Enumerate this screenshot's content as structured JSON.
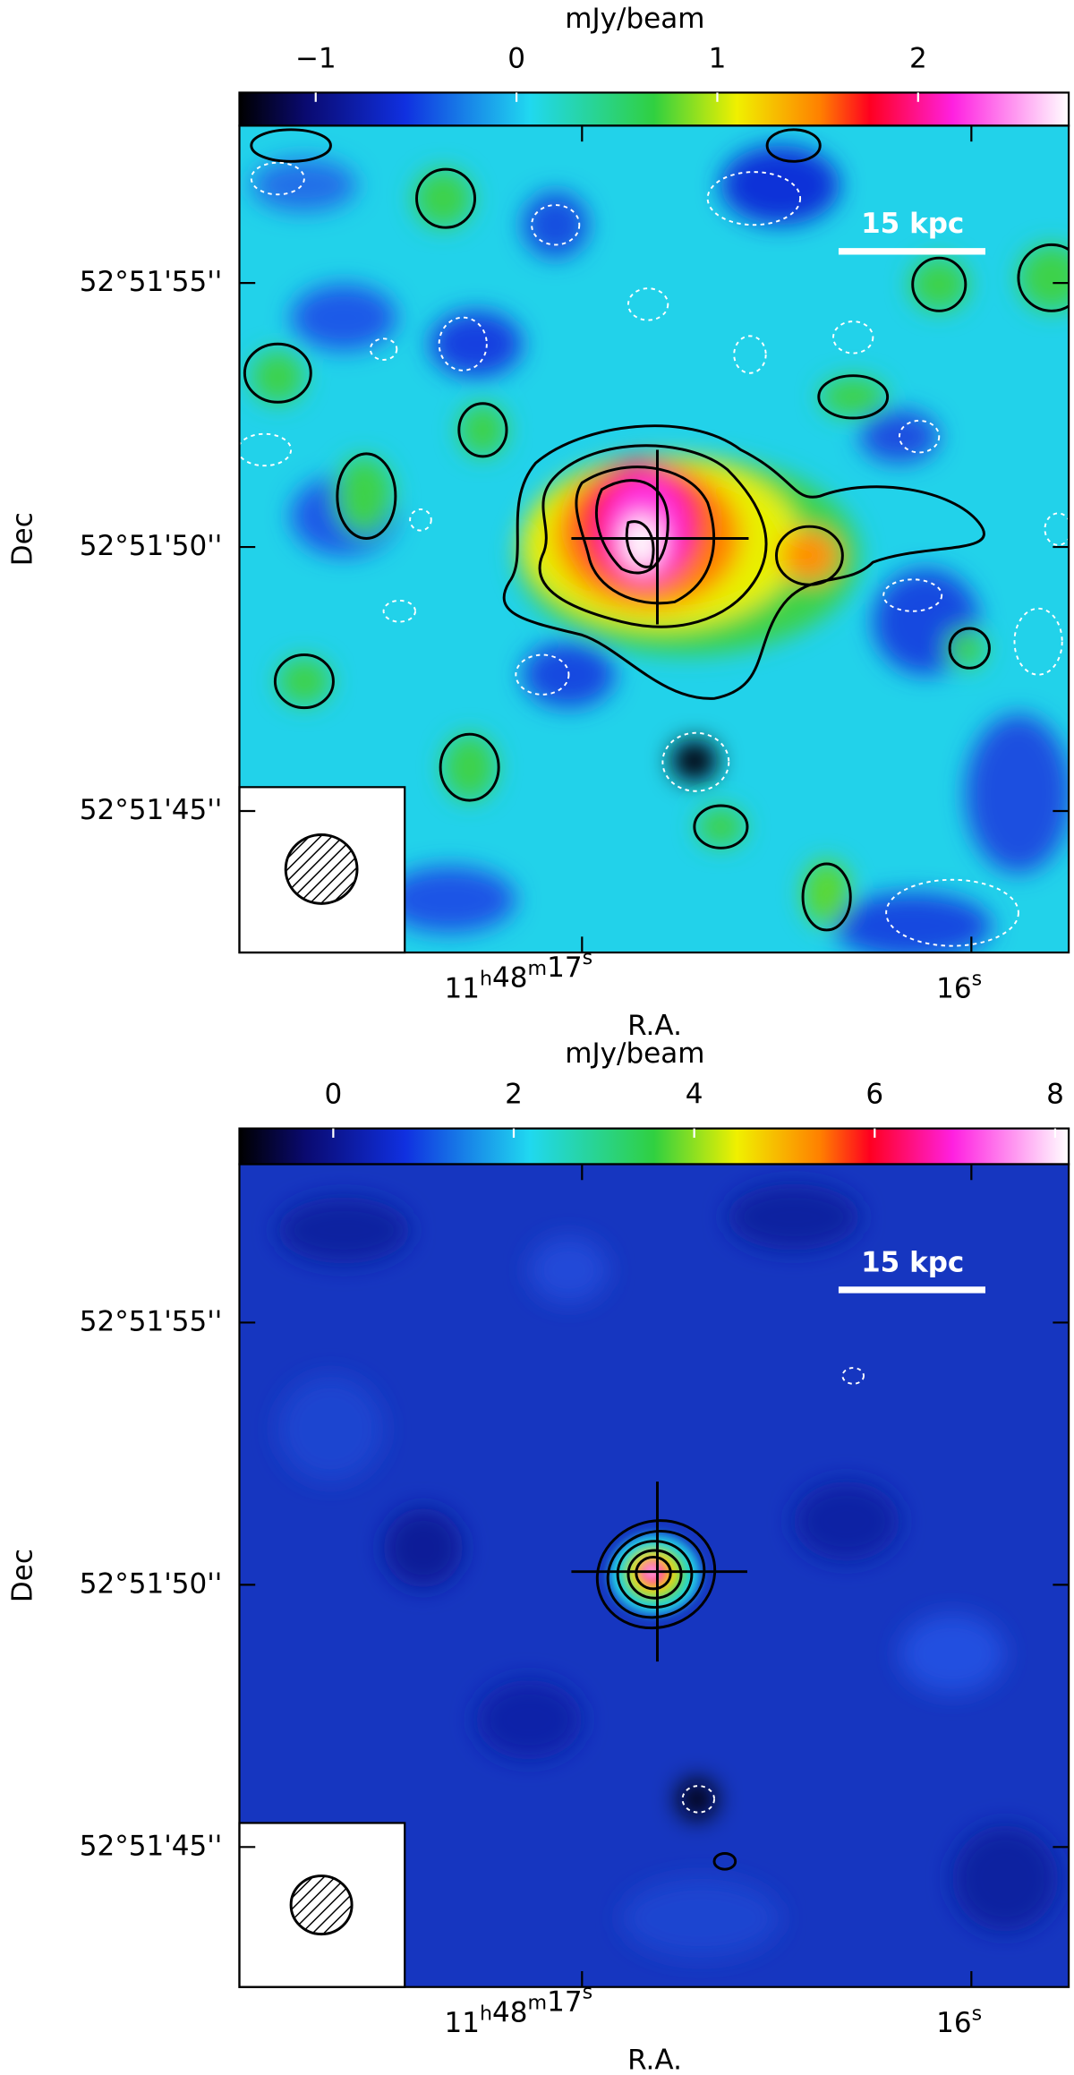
{
  "chart_data": [
    {
      "type": "image",
      "colorbar": {
        "label": "mJy/beam",
        "lim": [
          -1.38,
          2.75
        ],
        "ticks": [
          {
            "value": -1,
            "label": "−1"
          },
          0,
          1,
          2
        ]
      },
      "ylabel": "Dec",
      "xlabel": "R.A.",
      "ylim": [
        42.32,
        57.98
      ],
      "yticks": [
        {
          "value": 55,
          "label": "52°51'55''"
        },
        {
          "value": 50,
          "label": "52°51'50''"
        },
        {
          "value": 45,
          "label": "52°51'45''"
        }
      ],
      "xlim": [
        17.88,
        15.75
      ],
      "xticks": [
        {
          "value": 17,
          "label": "11h48m17s"
        },
        {
          "value": 16,
          "label": "16s"
        }
      ],
      "scalebar": "15 kpc"
    },
    {
      "type": "image",
      "colorbar": {
        "label": "mJy/beam",
        "lim": [
          -1.04,
          8.15
        ],
        "ticks": [
          0,
          2,
          4,
          6,
          8
        ]
      },
      "ylabel": "Dec",
      "xlabel": "R.A.",
      "ylim": [
        42.33,
        58.02
      ],
      "yticks": [
        {
          "value": 55,
          "label": "52°51'55''"
        },
        {
          "value": 50,
          "label": "52°51'50''"
        },
        {
          "value": 45,
          "label": "52°51'45''"
        }
      ],
      "xlim": [
        17.88,
        15.75
      ],
      "xticks": [
        {
          "value": 17,
          "label": "11h48m17s"
        },
        {
          "value": 16,
          "label": "16s"
        }
      ],
      "scalebar": "15 kpc"
    }
  ]
}
